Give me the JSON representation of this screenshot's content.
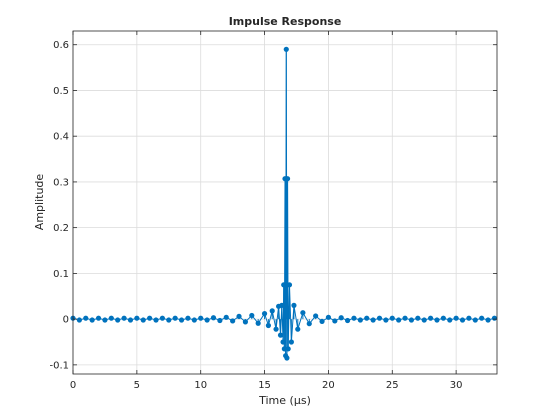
{
  "chart_data": {
    "type": "stem",
    "title": "Impulse Response",
    "xlabel": "Time (μs)",
    "ylabel": "Amplitude",
    "xlim": [
      0,
      33.2
    ],
    "ylim": [
      -0.12,
      0.63
    ],
    "xticks": [
      0,
      5,
      10,
      15,
      20,
      25,
      30
    ],
    "yticks": [
      -0.1,
      0,
      0.1,
      0.2,
      0.3,
      0.4,
      0.5,
      0.6
    ],
    "xtick_labels": [
      "0",
      "5",
      "10",
      "15",
      "20",
      "25",
      "30"
    ],
    "ytick_labels": [
      "-0.1",
      "0",
      "0.1",
      "0.2",
      "0.3",
      "0.4",
      "0.5",
      "0.6"
    ],
    "grid": true,
    "series": [
      {
        "color": "#0072BD",
        "marker": "filled-circle",
        "connected": true,
        "x": [
          0.0,
          0.5,
          1.0,
          1.5,
          2.0,
          2.5,
          3.0,
          3.5,
          4.0,
          4.5,
          5.0,
          5.5,
          6.0,
          6.5,
          7.0,
          7.5,
          8.0,
          8.5,
          9.0,
          9.5,
          10.0,
          10.5,
          11.0,
          11.5,
          12.0,
          12.5,
          13.0,
          13.5,
          14.0,
          14.5,
          15.0,
          15.3,
          15.6,
          15.9,
          16.1,
          16.25,
          16.35,
          16.45,
          16.5,
          16.55,
          16.6,
          16.65,
          16.7,
          16.75,
          16.8,
          16.85,
          16.95,
          17.1,
          17.3,
          17.6,
          18.0,
          18.5,
          19.0,
          19.5,
          20.0,
          20.5,
          21.0,
          21.5,
          22.0,
          22.5,
          23.0,
          23.5,
          24.0,
          24.5,
          25.0,
          25.5,
          26.0,
          26.5,
          27.0,
          27.5,
          28.0,
          28.5,
          29.0,
          29.5,
          30.0,
          30.5,
          31.0,
          31.5,
          32.0,
          32.5,
          33.0
        ],
        "y": [
          0.002,
          -0.002,
          0.002,
          -0.002,
          0.002,
          -0.002,
          0.002,
          -0.002,
          0.002,
          -0.002,
          0.002,
          -0.002,
          0.002,
          -0.002,
          0.002,
          -0.002,
          0.002,
          -0.002,
          0.002,
          -0.002,
          0.002,
          -0.002,
          0.003,
          -0.003,
          0.004,
          -0.004,
          0.006,
          -0.006,
          0.008,
          -0.009,
          0.012,
          -0.014,
          0.018,
          -0.022,
          0.028,
          -0.035,
          0.03,
          -0.05,
          0.075,
          -0.065,
          0.307,
          -0.08,
          0.59,
          -0.085,
          0.307,
          -0.065,
          0.075,
          -0.05,
          0.03,
          -0.022,
          0.014,
          -0.01,
          0.007,
          -0.005,
          0.004,
          -0.004,
          0.003,
          -0.003,
          0.002,
          -0.002,
          0.002,
          -0.002,
          0.002,
          -0.002,
          0.002,
          -0.002,
          0.002,
          -0.002,
          0.002,
          -0.002,
          0.002,
          -0.002,
          0.002,
          -0.002,
          0.002,
          -0.002,
          0.002,
          -0.002,
          0.002,
          -0.002,
          0.002
        ]
      }
    ]
  }
}
